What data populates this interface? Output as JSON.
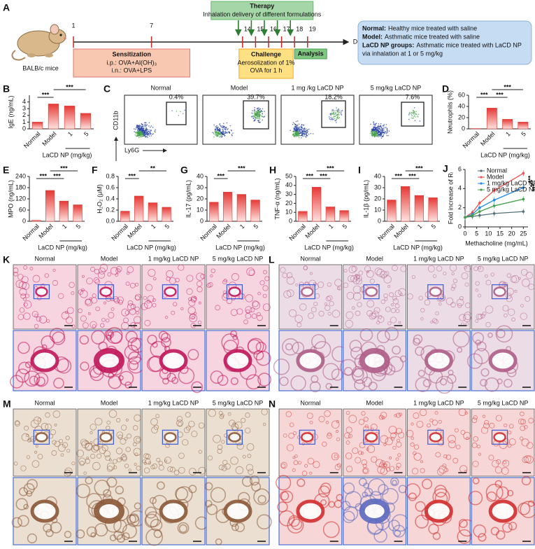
{
  "schematic": {
    "letter": "A",
    "mouse_label": "BALB/c mice",
    "days": [
      1,
      7,
      14,
      15,
      16,
      17,
      18,
      19
    ],
    "days_label": "Days",
    "therapy": {
      "title": "Therapy",
      "text": "Inhalation delivery of different formulations"
    },
    "sensitization": {
      "title": "Sensitization",
      "lines": [
        "i.p.: OVA+Al(OH)₃",
        "i.n.: OVA+LPS"
      ]
    },
    "challenge": {
      "title": "Challenge",
      "lines": [
        "Aerosolization of 1%",
        "OVA for 1 h"
      ]
    },
    "analysis": "Analysis",
    "groups": [
      {
        "name": "Normal:",
        "text": "Healthy mice treated with saline"
      },
      {
        "name": "Model:",
        "text": "Asthmatic mice treated with saline"
      },
      {
        "name": "LaCD NP groups:",
        "text": "Asthmatic mice treated with LaCD NP",
        "text2": "via inhalation at 1 or 5 mg/kg"
      }
    ]
  },
  "flow": {
    "letter": "C",
    "xlabel": "Ly6G",
    "ylabel": "CD11b",
    "plots": [
      {
        "title": "Normal",
        "percent": "0.4%"
      },
      {
        "title": "Model",
        "percent": "39.7%"
      },
      {
        "title": "1 mg /kg LaCD NP",
        "percent": "18.2%"
      },
      {
        "title": "5 mg/kg LaCD NP",
        "percent": "7.6%"
      }
    ]
  },
  "chart_data": [
    {
      "type": "bar",
      "letter": "B",
      "ylabel": "IgE (ng/mL)",
      "categories": [
        "Normal",
        "Model",
        "1",
        "5"
      ],
      "values": [
        1.0,
        3.7,
        3.4,
        2.3
      ],
      "ylim": [
        0,
        5
      ],
      "yticks": [
        0,
        1,
        2,
        3,
        4
      ],
      "color": "#e53935",
      "group_label": "LaCD NP (mg/kg)",
      "significance": [
        {
          "label": "***",
          "between": [
            "Normal",
            "Model"
          ]
        },
        {
          "label": "***",
          "between": [
            "Model",
            "5"
          ]
        }
      ]
    },
    {
      "type": "bar",
      "letter": "D",
      "ylabel": "Neutrophils (%)",
      "categories": [
        "Normal",
        "Model",
        "1",
        "5"
      ],
      "values": [
        0.5,
        37,
        17,
        12
      ],
      "ylim": [
        0,
        60
      ],
      "yticks": [
        0,
        20,
        40,
        60
      ],
      "color": "#e53935",
      "group_label": "LaCD NP (mg/kg)",
      "significance": [
        {
          "label": "***",
          "between": [
            "Normal",
            "Model"
          ]
        },
        {
          "label": "***",
          "between": [
            "Model",
            "1"
          ]
        },
        {
          "label": "***",
          "between": [
            "Model",
            "5"
          ]
        }
      ]
    },
    {
      "type": "bar",
      "letter": "E",
      "ylabel": "MPO (ng/mL)",
      "categories": [
        "Normal",
        "Model",
        "1",
        "5"
      ],
      "values": [
        5,
        165,
        108,
        88
      ],
      "ylim": [
        0,
        240
      ],
      "yticks": [
        0,
        60,
        120,
        180,
        240
      ],
      "color": "#e53935",
      "group_label": "LaCD NP (mg/kg)",
      "significance": [
        {
          "label": "***",
          "between": [
            "Normal",
            "Model"
          ]
        },
        {
          "label": "***",
          "between": [
            "Model",
            "1"
          ]
        },
        {
          "label": "***",
          "between": [
            "Model",
            "5"
          ]
        }
      ]
    },
    {
      "type": "bar",
      "letter": "F",
      "ylabel": "H₂O₂ (μM)",
      "categories": [
        "Normal",
        "Model",
        "1",
        "5"
      ],
      "values": [
        0.18,
        0.45,
        0.33,
        0.25
      ],
      "ylim": [
        0,
        0.8
      ],
      "yticks": [
        {
          "value": 0,
          "label": "0.0"
        },
        0.2,
        0.4,
        0.6,
        0.8
      ],
      "color": "#e53935",
      "group_label": "LaCD NP (mg/kg)",
      "significance": [
        {
          "label": "***",
          "between": [
            "Normal",
            "Model"
          ]
        },
        {
          "label": "**",
          "between": [
            "Model",
            "5"
          ]
        }
      ]
    },
    {
      "type": "bar",
      "letter": "G",
      "ylabel": "IL-17 (pg/mL)",
      "categories": [
        "Normal",
        "Model",
        "1",
        "5"
      ],
      "values": [
        17,
        26,
        24,
        19
      ],
      "ylim": [
        0,
        40
      ],
      "yticks": [
        0,
        10,
        20,
        30,
        40
      ],
      "color": "#e53935",
      "group_label": "LaCD NP (mg/kg)",
      "significance": [
        {
          "label": "***",
          "between": [
            "Normal",
            "Model"
          ]
        },
        {
          "label": "***",
          "between": [
            "Model",
            "5"
          ]
        }
      ]
    },
    {
      "type": "bar",
      "letter": "H",
      "ylabel": "TNF-α (ng/mL)",
      "categories": [
        "Normal",
        "Model",
        "1",
        "5"
      ],
      "values": [
        11,
        38,
        16,
        12
      ],
      "ylim": [
        0,
        50
      ],
      "yticks": [
        0,
        10,
        20,
        30,
        40,
        50
      ],
      "color": "#e53935",
      "group_label": "LaCD NP (mg/kg)",
      "significance": [
        {
          "label": "***",
          "between": [
            "Normal",
            "Model"
          ]
        },
        {
          "label": "***",
          "between": [
            "Model",
            "1"
          ]
        },
        {
          "label": "***",
          "between": [
            "Model",
            "5"
          ]
        }
      ]
    },
    {
      "type": "bar",
      "letter": "I",
      "ylabel": "IL-1β (pg/mL)",
      "categories": [
        "Normal",
        "Model",
        "1",
        "5"
      ],
      "values": [
        19,
        31,
        23,
        21
      ],
      "ylim": [
        0,
        40
      ],
      "yticks": [
        0,
        10,
        20,
        30,
        40
      ],
      "color": "#e53935",
      "group_label": "LaCD NP (mg/kg)",
      "significance": [
        {
          "label": "***",
          "between": [
            "Normal",
            "Model"
          ]
        },
        {
          "label": "***",
          "between": [
            "Model",
            "1"
          ]
        },
        {
          "label": "***",
          "between": [
            "Model",
            "5"
          ]
        }
      ]
    },
    {
      "type": "line",
      "letter": "J",
      "ylabel": "Fold increase of Rₗ",
      "xlabel": "Methacholine (mg/mL)",
      "x": [
        0,
        3.125,
        6.25,
        12.5,
        25
      ],
      "xlim": [
        0,
        27
      ],
      "xticks": [
        0,
        5,
        10,
        15,
        20,
        25
      ],
      "ylim": [
        0,
        6
      ],
      "yticks": [
        0,
        2,
        4,
        6
      ],
      "series": [
        {
          "name": "Normal",
          "color": "#546e7a",
          "values": [
            1.0,
            1.1,
            1.2,
            1.4,
            1.6
          ]
        },
        {
          "name": "Model",
          "color": "#ef5350",
          "values": [
            1.0,
            1.5,
            2.5,
            3.8,
            5.6
          ]
        },
        {
          "name": "1 mg/kg LaCD NP",
          "color": "#1e88e5",
          "values": [
            1.0,
            1.3,
            2.0,
            2.8,
            4.1
          ]
        },
        {
          "name": "5 mg/kg LaCD NP",
          "color": "#43a047",
          "values": [
            1.0,
            1.2,
            1.6,
            2.2,
            2.9
          ]
        }
      ],
      "significance": [
        "***",
        "***",
        "***"
      ]
    }
  ],
  "histology": [
    {
      "letter": "K",
      "columns": [
        "Normal",
        "Model",
        "1 mg/kg LaCD NP",
        "5 mg/kg LaCD NP"
      ]
    },
    {
      "letter": "L",
      "columns": [
        "Normal",
        "Model",
        "1 mg/kg LaCD NP",
        "5 mg/kg LaCD NP"
      ]
    },
    {
      "letter": "M",
      "columns": [
        "Normal",
        "Model",
        "1 mg/kg LaCD NP",
        "5 mg/kg LaCD NP"
      ]
    },
    {
      "letter": "N",
      "columns": [
        "Normal",
        "Model",
        "1 mg/kg LaCD NP",
        "5 mg/kg LaCD NP"
      ]
    }
  ]
}
